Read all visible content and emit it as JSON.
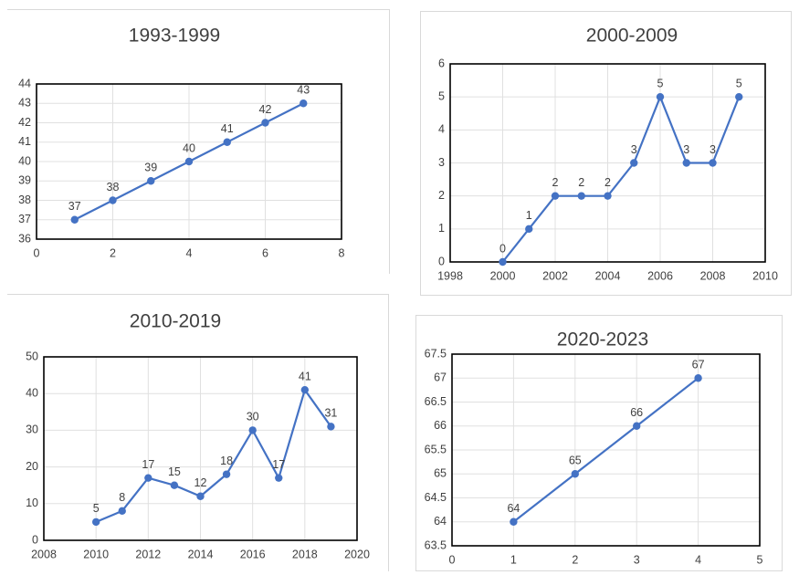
{
  "chart_data": [
    {
      "type": "scatter",
      "title": "1993-1999",
      "xlabel": "",
      "ylabel": "",
      "xlim": [
        0,
        8
      ],
      "ylim": [
        36,
        44
      ],
      "xticks": [
        "0",
        "2",
        "4",
        "6",
        "8"
      ],
      "yticks": [
        "36",
        "37",
        "38",
        "39",
        "40",
        "41",
        "42",
        "43",
        "44"
      ],
      "grid": true,
      "series": [
        {
          "x": [
            1,
            2,
            3,
            4,
            5,
            6,
            7
          ],
          "y": [
            37,
            38,
            39,
            40,
            41,
            42,
            43
          ]
        }
      ],
      "labels": [
        "37",
        "38",
        "39",
        "40",
        "41",
        "42",
        "43"
      ],
      "color": "#4472c4"
    },
    {
      "type": "scatter",
      "title": "2000-2009",
      "xlabel": "",
      "ylabel": "",
      "xlim": [
        1998,
        2010
      ],
      "ylim": [
        0,
        6
      ],
      "xticks": [
        "1998",
        "2000",
        "2002",
        "2004",
        "2006",
        "2008",
        "2010"
      ],
      "yticks": [
        "0",
        "1",
        "2",
        "3",
        "4",
        "5",
        "6"
      ],
      "grid": true,
      "series": [
        {
          "x": [
            2000,
            2001,
            2002,
            2003,
            2004,
            2005,
            2006,
            2007,
            2008,
            2009
          ],
          "y": [
            0,
            1,
            2,
            2,
            2,
            3,
            5,
            3,
            3,
            5
          ]
        }
      ],
      "labels": [
        "0",
        "1",
        "2",
        "2",
        "2",
        "3",
        "5",
        "3",
        "3",
        "5"
      ],
      "color": "#4472c4"
    },
    {
      "type": "scatter",
      "title": "2010-2019",
      "xlabel": "",
      "ylabel": "",
      "xlim": [
        2008,
        2020
      ],
      "ylim": [
        0,
        50
      ],
      "xticks": [
        "2008",
        "2010",
        "2012",
        "2014",
        "2016",
        "2018",
        "2020"
      ],
      "yticks": [
        "0",
        "10",
        "20",
        "30",
        "40",
        "50"
      ],
      "grid": true,
      "series": [
        {
          "x": [
            2010,
            2011,
            2012,
            2013,
            2014,
            2015,
            2016,
            2017,
            2018,
            2019
          ],
          "y": [
            5,
            8,
            17,
            15,
            12,
            18,
            30,
            17,
            41,
            31
          ]
        }
      ],
      "labels": [
        "5",
        "8",
        "17",
        "15",
        "12",
        "18",
        "30",
        "17",
        "41",
        "31"
      ],
      "color": "#4472c4"
    },
    {
      "type": "scatter",
      "title": "2020-2023",
      "xlabel": "",
      "ylabel": "",
      "xlim": [
        0,
        5
      ],
      "ylim": [
        63.5,
        67.5
      ],
      "xticks": [
        "0",
        "1",
        "2",
        "3",
        "4",
        "5"
      ],
      "yticks": [
        "63.5",
        "64",
        "64.5",
        "65",
        "65.5",
        "66",
        "66.5",
        "67",
        "67.5"
      ],
      "grid": true,
      "series": [
        {
          "x": [
            1,
            2,
            3,
            4
          ],
          "y": [
            64,
            65,
            66,
            67
          ]
        }
      ],
      "labels": [
        "64",
        "65",
        "66",
        "67"
      ],
      "color": "#4472c4"
    }
  ]
}
